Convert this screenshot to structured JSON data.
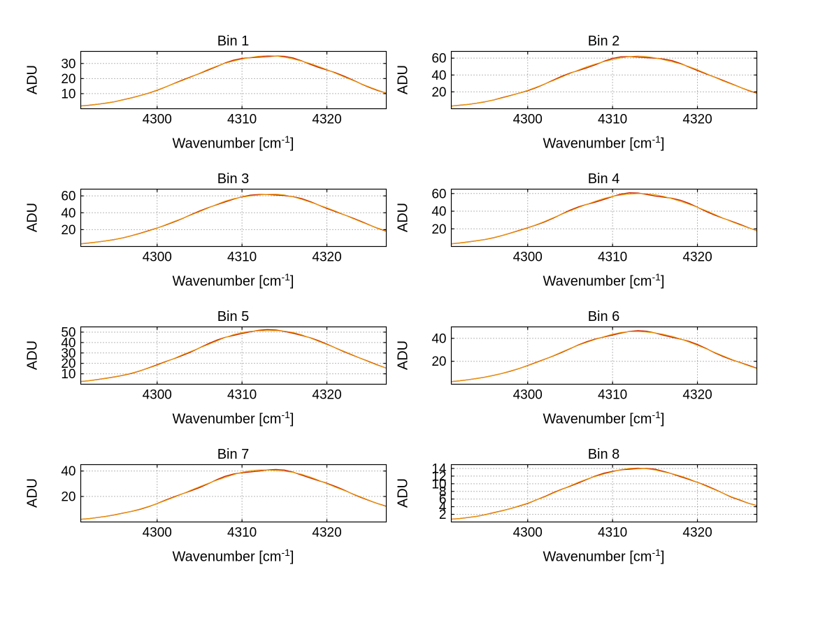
{
  "figure": {
    "background": "#ffffff"
  },
  "chart_data": {
    "type": "line",
    "layout": "4 rows x 2 cols of subplots, shared style",
    "x_label": "Wavenumber [cm⁻¹]",
    "x_label_prefix": "Wavenumber [cm",
    "x_label_sup": "-1",
    "x_label_suffix": "]",
    "y_label": "ADU",
    "grid": "on",
    "x_ticks": [
      4300,
      4310,
      4320
    ],
    "x_range": [
      4291,
      4327
    ],
    "line_colors": [
      "#cc2200",
      "#e8a000"
    ],
    "x": [
      4291,
      4292,
      4293,
      4294,
      4295,
      4296,
      4297,
      4298,
      4299,
      4300,
      4301,
      4302,
      4303,
      4304,
      4305,
      4306,
      4307,
      4308,
      4309,
      4310,
      4311,
      4312,
      4313,
      4314,
      4315,
      4316,
      4317,
      4318,
      4319,
      4320,
      4321,
      4322,
      4323,
      4324,
      4325,
      4326,
      4327
    ],
    "subplots": [
      {
        "title": "Bin 1",
        "y_ticks": [
          10,
          20,
          30
        ],
        "y_range": [
          0,
          38
        ],
        "values": [
          1.8,
          2.3,
          3.0,
          3.8,
          4.7,
          5.9,
          7.2,
          8.7,
          10.4,
          12.3,
          14.4,
          16.6,
          18.9,
          21.2,
          23.6,
          25.9,
          28.0,
          30.0,
          31.7,
          33.1,
          34.1,
          34.8,
          35.0,
          34.8,
          34.1,
          33.1,
          31.7,
          30.0,
          28.0,
          25.9,
          23.6,
          21.2,
          18.9,
          16.6,
          14.4,
          12.3,
          10.4
        ]
      },
      {
        "title": "Bin 2",
        "y_ticks": [
          20,
          40,
          60
        ],
        "y_range": [
          0,
          68
        ],
        "values": [
          3.1,
          4.1,
          5.2,
          6.7,
          8.4,
          10.4,
          12.8,
          15.5,
          18.5,
          21.8,
          25.5,
          29.4,
          33.4,
          37.6,
          41.8,
          45.8,
          49.6,
          53.1,
          56.2,
          58.6,
          60.5,
          61.6,
          62.0,
          61.6,
          60.5,
          58.6,
          56.2,
          53.1,
          49.6,
          45.8,
          41.8,
          37.6,
          33.4,
          29.4,
          25.5,
          21.8,
          18.5
        ]
      },
      {
        "title": "Bin 3",
        "y_ticks": [
          20,
          40,
          60
        ],
        "y_range": [
          0,
          68
        ],
        "values": [
          3.1,
          4.1,
          5.2,
          6.7,
          8.4,
          10.4,
          12.8,
          15.5,
          18.5,
          21.8,
          25.5,
          29.4,
          33.4,
          37.6,
          41.8,
          45.8,
          49.6,
          53.1,
          56.2,
          58.6,
          60.5,
          61.6,
          62.0,
          61.6,
          60.5,
          58.6,
          56.2,
          53.1,
          49.6,
          45.8,
          41.8,
          37.6,
          33.4,
          29.4,
          25.5,
          21.8,
          18.5
        ]
      },
      {
        "title": "Bin 4",
        "y_ticks": [
          20,
          40,
          60
        ],
        "y_range": [
          0,
          65
        ],
        "values": [
          3.0,
          3.9,
          5.1,
          6.5,
          8.1,
          10.1,
          12.4,
          15.0,
          17.9,
          21.1,
          24.7,
          28.4,
          32.4,
          36.4,
          40.4,
          44.3,
          48.0,
          51.4,
          54.4,
          56.8,
          58.5,
          59.6,
          60.0,
          59.6,
          58.5,
          56.8,
          54.4,
          51.4,
          48.0,
          44.3,
          40.4,
          36.4,
          32.4,
          28.4,
          24.7,
          21.1,
          17.9
        ]
      },
      {
        "title": "Bin 5",
        "y_ticks": [
          10,
          20,
          30,
          40,
          50
        ],
        "y_range": [
          0,
          55
        ],
        "values": [
          2.6,
          3.4,
          4.4,
          5.6,
          7.0,
          8.7,
          10.7,
          13.0,
          15.5,
          18.3,
          21.4,
          24.6,
          28.1,
          31.5,
          35.0,
          38.4,
          41.6,
          44.6,
          47.1,
          49.2,
          50.7,
          51.7,
          52.0,
          51.7,
          50.7,
          49.2,
          47.1,
          44.6,
          41.6,
          38.4,
          35.0,
          31.5,
          28.1,
          24.6,
          21.4,
          18.3,
          15.5
        ]
      },
      {
        "title": "Bin 6",
        "y_ticks": [
          20,
          40
        ],
        "y_range": [
          0,
          50
        ],
        "values": [
          2.3,
          3.0,
          3.9,
          5.0,
          6.2,
          7.7,
          9.5,
          11.5,
          13.7,
          16.2,
          18.9,
          21.8,
          24.8,
          27.9,
          31.0,
          34.0,
          36.8,
          39.4,
          41.7,
          43.5,
          44.9,
          45.7,
          46.0,
          45.7,
          44.9,
          43.5,
          41.7,
          39.4,
          36.8,
          34.0,
          31.0,
          27.9,
          24.8,
          21.8,
          18.9,
          16.2,
          13.7
        ]
      },
      {
        "title": "Bin 7",
        "y_ticks": [
          20,
          40
        ],
        "y_range": [
          0,
          45
        ],
        "values": [
          2.1,
          2.7,
          3.5,
          4.4,
          5.5,
          6.9,
          8.4,
          10.2,
          12.2,
          14.4,
          16.9,
          19.4,
          22.1,
          24.9,
          27.6,
          30.3,
          32.8,
          35.1,
          37.1,
          38.8,
          40.0,
          40.7,
          41.0,
          40.7,
          40.0,
          38.8,
          37.1,
          35.1,
          32.8,
          30.3,
          27.6,
          24.9,
          22.1,
          19.4,
          16.9,
          14.4,
          12.2
        ]
      },
      {
        "title": "Bin 8",
        "y_ticks": [
          2,
          4,
          6,
          8,
          10,
          12,
          14
        ],
        "y_range": [
          0,
          15
        ],
        "values": [
          0.7,
          0.9,
          1.2,
          1.5,
          1.9,
          2.4,
          2.9,
          3.5,
          4.2,
          4.9,
          5.8,
          6.6,
          7.6,
          8.5,
          9.4,
          10.3,
          11.2,
          12.0,
          12.7,
          13.2,
          13.7,
          13.9,
          14.0,
          13.9,
          13.7,
          13.2,
          12.7,
          12.0,
          11.2,
          10.3,
          9.4,
          8.5,
          7.6,
          6.6,
          5.8,
          4.9,
          4.2
        ]
      }
    ]
  }
}
